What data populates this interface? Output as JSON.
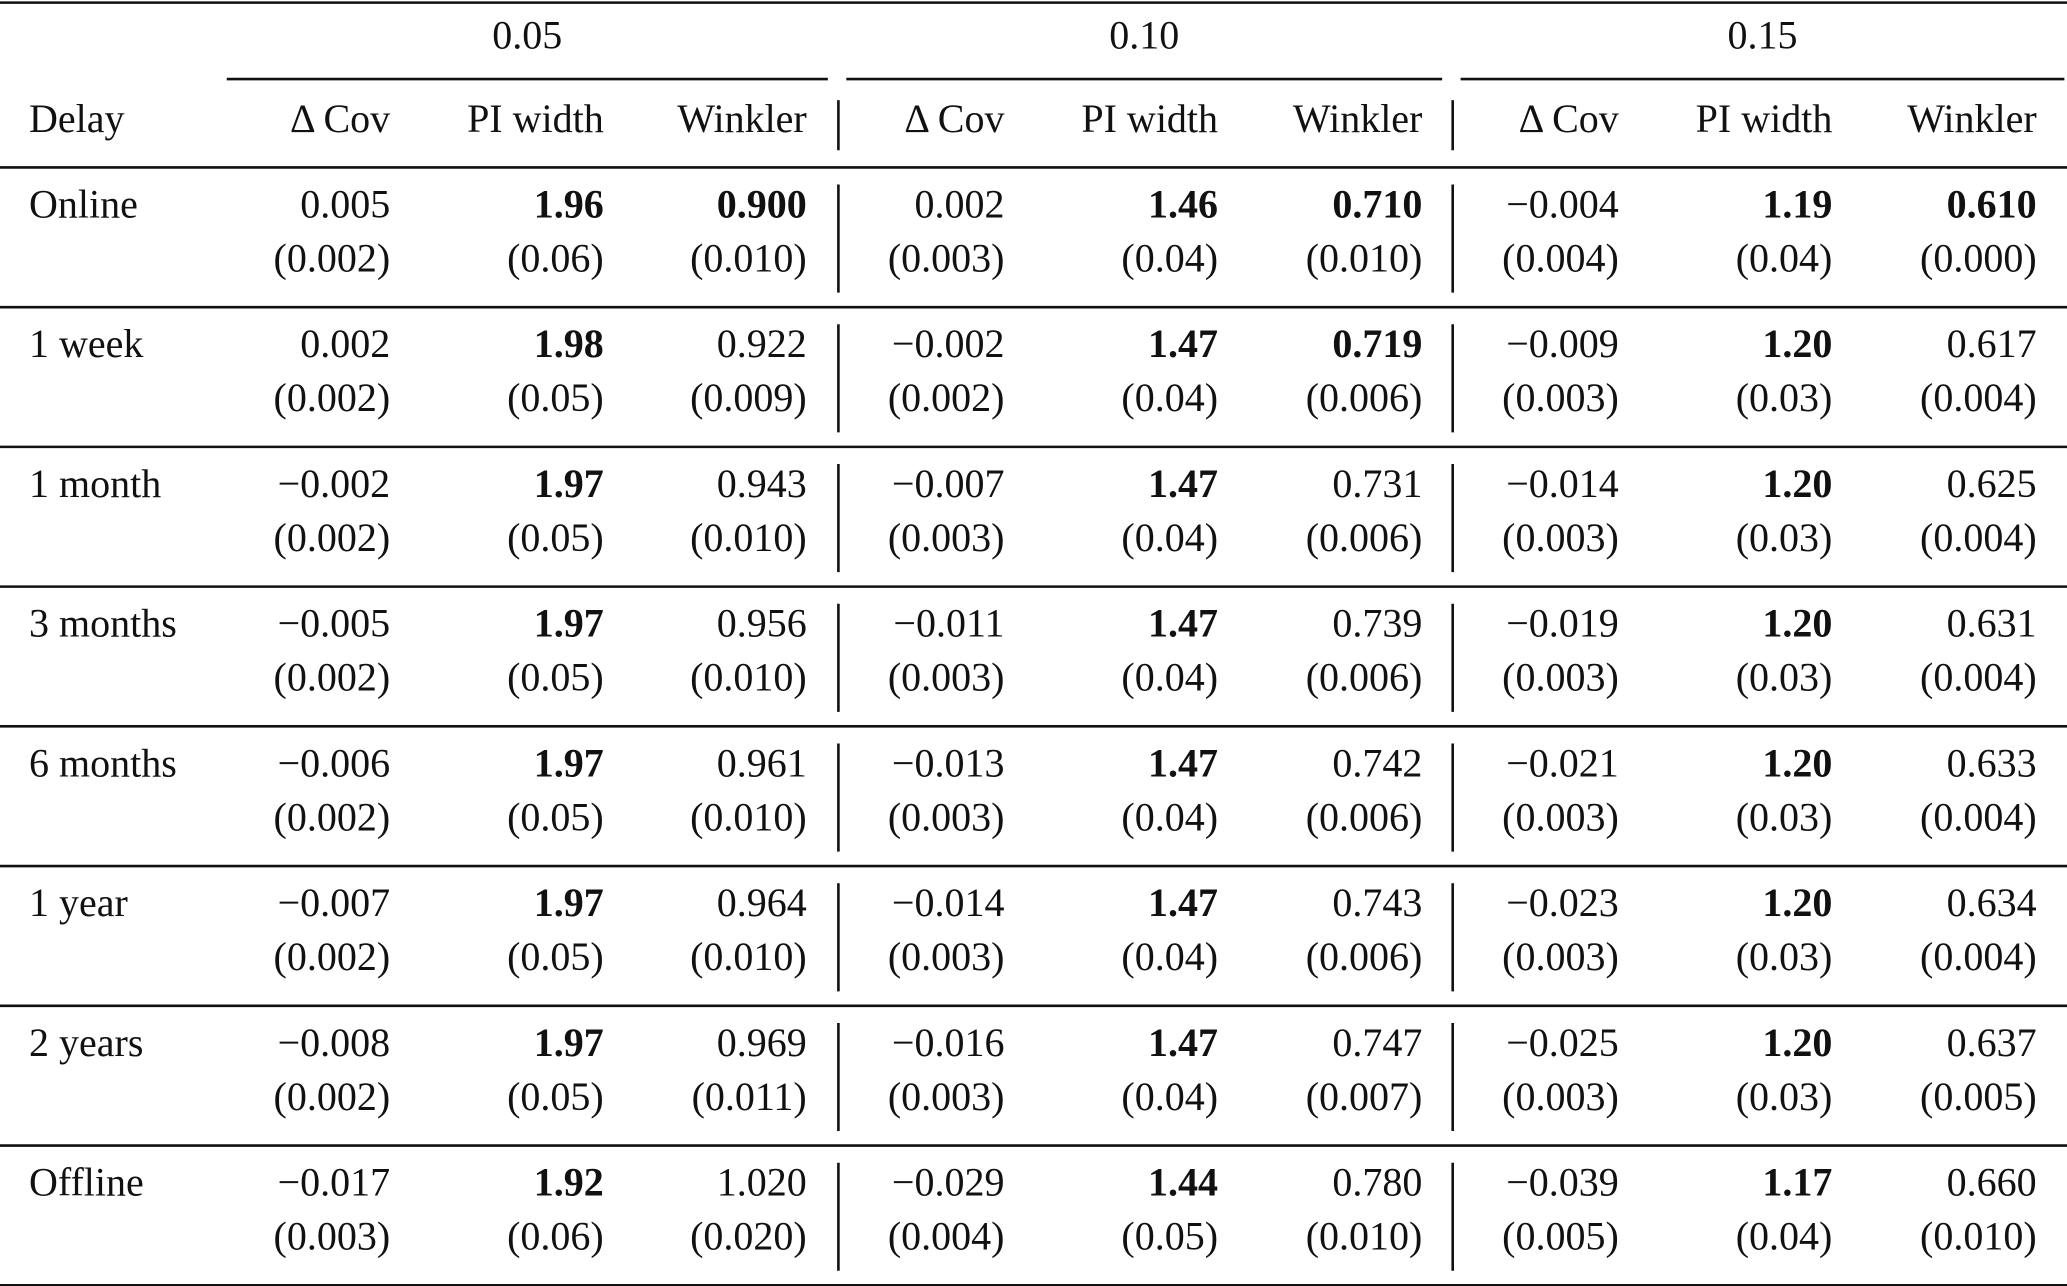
{
  "table": {
    "row_header": "Delay",
    "column_groups": [
      {
        "label": "0.05",
        "columns": [
          "Δ Cov",
          "PI width",
          "Winkler"
        ]
      },
      {
        "label": "0.10",
        "columns": [
          "Δ Cov",
          "PI width",
          "Winkler"
        ]
      },
      {
        "label": "0.15",
        "columns": [
          "Δ Cov",
          "PI width",
          "Winkler"
        ]
      }
    ],
    "rows": [
      {
        "label": "Online",
        "cells": [
          {
            "value": "0.005",
            "se": "(0.002)"
          },
          {
            "value": "1.96",
            "se": "(0.06)",
            "bold": true
          },
          {
            "value": "0.900",
            "se": "(0.010)",
            "bold": true
          },
          {
            "value": "0.002",
            "se": "(0.003)"
          },
          {
            "value": "1.46",
            "se": "(0.04)",
            "bold": true
          },
          {
            "value": "0.710",
            "se": "(0.010)",
            "bold": true
          },
          {
            "value": "−0.004",
            "se": "(0.004)"
          },
          {
            "value": "1.19",
            "se": "(0.04)",
            "bold": true
          },
          {
            "value": "0.610",
            "se": "(0.000)",
            "bold": true
          }
        ]
      },
      {
        "label": "1 week",
        "cells": [
          {
            "value": "0.002",
            "se": "(0.002)"
          },
          {
            "value": "1.98",
            "se": "(0.05)",
            "bold": true
          },
          {
            "value": "0.922",
            "se": "(0.009)"
          },
          {
            "value": "−0.002",
            "se": "(0.002)"
          },
          {
            "value": "1.47",
            "se": "(0.04)",
            "bold": true
          },
          {
            "value": "0.719",
            "se": "(0.006)",
            "bold": true
          },
          {
            "value": "−0.009",
            "se": "(0.003)"
          },
          {
            "value": "1.20",
            "se": "(0.03)",
            "bold": true
          },
          {
            "value": "0.617",
            "se": "(0.004)"
          }
        ]
      },
      {
        "label": "1 month",
        "cells": [
          {
            "value": "−0.002",
            "se": "(0.002)"
          },
          {
            "value": "1.97",
            "se": "(0.05)",
            "bold": true
          },
          {
            "value": "0.943",
            "se": "(0.010)"
          },
          {
            "value": "−0.007",
            "se": "(0.003)"
          },
          {
            "value": "1.47",
            "se": "(0.04)",
            "bold": true
          },
          {
            "value": "0.731",
            "se": "(0.006)"
          },
          {
            "value": "−0.014",
            "se": "(0.003)"
          },
          {
            "value": "1.20",
            "se": "(0.03)",
            "bold": true
          },
          {
            "value": "0.625",
            "se": "(0.004)"
          }
        ]
      },
      {
        "label": "3 months",
        "cells": [
          {
            "value": "−0.005",
            "se": "(0.002)"
          },
          {
            "value": "1.97",
            "se": "(0.05)",
            "bold": true
          },
          {
            "value": "0.956",
            "se": "(0.010)"
          },
          {
            "value": "−0.011",
            "se": "(0.003)"
          },
          {
            "value": "1.47",
            "se": "(0.04)",
            "bold": true
          },
          {
            "value": "0.739",
            "se": "(0.006)"
          },
          {
            "value": "−0.019",
            "se": "(0.003)"
          },
          {
            "value": "1.20",
            "se": "(0.03)",
            "bold": true
          },
          {
            "value": "0.631",
            "se": "(0.004)"
          }
        ]
      },
      {
        "label": "6 months",
        "cells": [
          {
            "value": "−0.006",
            "se": "(0.002)"
          },
          {
            "value": "1.97",
            "se": "(0.05)",
            "bold": true
          },
          {
            "value": "0.961",
            "se": "(0.010)"
          },
          {
            "value": "−0.013",
            "se": "(0.003)"
          },
          {
            "value": "1.47",
            "se": "(0.04)",
            "bold": true
          },
          {
            "value": "0.742",
            "se": "(0.006)"
          },
          {
            "value": "−0.021",
            "se": "(0.003)"
          },
          {
            "value": "1.20",
            "se": "(0.03)",
            "bold": true
          },
          {
            "value": "0.633",
            "se": "(0.004)"
          }
        ]
      },
      {
        "label": "1 year",
        "cells": [
          {
            "value": "−0.007",
            "se": "(0.002)"
          },
          {
            "value": "1.97",
            "se": "(0.05)",
            "bold": true
          },
          {
            "value": "0.964",
            "se": "(0.010)"
          },
          {
            "value": "−0.014",
            "se": "(0.003)"
          },
          {
            "value": "1.47",
            "se": "(0.04)",
            "bold": true
          },
          {
            "value": "0.743",
            "se": "(0.006)"
          },
          {
            "value": "−0.023",
            "se": "(0.003)"
          },
          {
            "value": "1.20",
            "se": "(0.03)",
            "bold": true
          },
          {
            "value": "0.634",
            "se": "(0.004)"
          }
        ]
      },
      {
        "label": "2 years",
        "cells": [
          {
            "value": "−0.008",
            "se": "(0.002)"
          },
          {
            "value": "1.97",
            "se": "(0.05)",
            "bold": true
          },
          {
            "value": "0.969",
            "se": "(0.011)"
          },
          {
            "value": "−0.016",
            "se": "(0.003)"
          },
          {
            "value": "1.47",
            "se": "(0.04)",
            "bold": true
          },
          {
            "value": "0.747",
            "se": "(0.007)"
          },
          {
            "value": "−0.025",
            "se": "(0.003)"
          },
          {
            "value": "1.20",
            "se": "(0.03)",
            "bold": true
          },
          {
            "value": "0.637",
            "se": "(0.005)"
          }
        ]
      },
      {
        "label": "Offline",
        "cells": [
          {
            "value": "−0.017",
            "se": "(0.003)"
          },
          {
            "value": "1.92",
            "se": "(0.06)",
            "bold": true
          },
          {
            "value": "1.020",
            "se": "(0.020)"
          },
          {
            "value": "−0.029",
            "se": "(0.004)"
          },
          {
            "value": "1.44",
            "se": "(0.05)",
            "bold": true
          },
          {
            "value": "0.780",
            "se": "(0.010)"
          },
          {
            "value": "−0.039",
            "se": "(0.005)"
          },
          {
            "value": "1.17",
            "se": "(0.04)",
            "bold": true
          },
          {
            "value": "0.660",
            "se": "(0.010)"
          }
        ]
      }
    ]
  }
}
